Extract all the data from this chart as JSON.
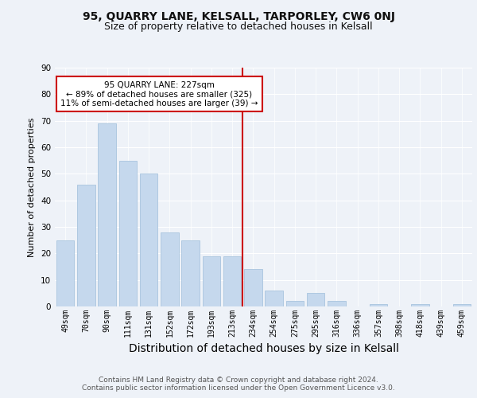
{
  "title1": "95, QUARRY LANE, KELSALL, TARPORLEY, CW6 0NJ",
  "title2": "Size of property relative to detached houses in Kelsall",
  "xlabel": "Distribution of detached houses by size in Kelsall",
  "ylabel": "Number of detached properties",
  "categories": [
    "49sqm",
    "70sqm",
    "90sqm",
    "111sqm",
    "131sqm",
    "152sqm",
    "172sqm",
    "193sqm",
    "213sqm",
    "234sqm",
    "254sqm",
    "275sqm",
    "295sqm",
    "316sqm",
    "336sqm",
    "357sqm",
    "398sqm",
    "418sqm",
    "439sqm",
    "459sqm"
  ],
  "values": [
    25,
    46,
    69,
    55,
    50,
    28,
    25,
    19,
    19,
    14,
    6,
    2,
    5,
    2,
    0,
    1,
    0,
    1,
    0,
    1
  ],
  "bar_color": "#c5d8ed",
  "bar_edge_color": "#a8c4de",
  "vline_index": 9,
  "annotation_text": "95 QUARRY LANE: 227sqm\n← 89% of detached houses are smaller (325)\n11% of semi-detached houses are larger (39) →",
  "annotation_box_color": "#ffffff",
  "annotation_box_edge": "#cc0000",
  "vline_color": "#cc0000",
  "ylim": [
    0,
    90
  ],
  "yticks": [
    0,
    10,
    20,
    30,
    40,
    50,
    60,
    70,
    80,
    90
  ],
  "background_color": "#eef2f8",
  "footer": "Contains HM Land Registry data © Crown copyright and database right 2024.\nContains public sector information licensed under the Open Government Licence v3.0.",
  "grid_color": "#ffffff",
  "title1_fontsize": 10,
  "title2_fontsize": 9,
  "xlabel_fontsize": 10,
  "ylabel_fontsize": 8,
  "footer_fontsize": 6.5,
  "tick_fontsize": 7,
  "annot_fontsize": 7.5
}
